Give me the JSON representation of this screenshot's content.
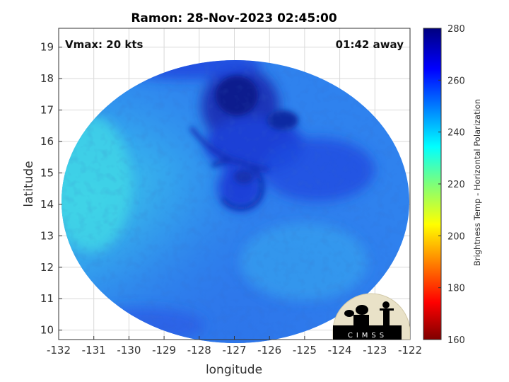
{
  "title": "Ramon: 28-Nov-2023 02:45:00",
  "vmax_label": "Vmax: 20 kts",
  "away_label": "01:42 away",
  "logo_text": "CIMSS",
  "colors": {
    "deep": "#0a1f8a",
    "core": "#1a3fd8",
    "mid": "#2b73ee",
    "light": "#3aa6ef",
    "cyan": "#3fd0e8",
    "axis": "#333333"
  },
  "chart_data": {
    "type": "heatmap",
    "title": "Ramon: 28-Nov-2023 02:45:00",
    "xlabel": "longitude",
    "ylabel": "latitude",
    "xlim": [
      -132,
      -122
    ],
    "ylim": [
      9.7,
      19.6
    ],
    "xticks": [
      -132,
      -131,
      -130,
      -129,
      -128,
      -127,
      -126,
      -125,
      -124,
      -123,
      -122
    ],
    "yticks": [
      10,
      11,
      12,
      13,
      14,
      15,
      16,
      17,
      18,
      19
    ],
    "grid": true,
    "colorbar": {
      "label": "Brightness Temp - Horizontal Polarization",
      "range": [
        160,
        280
      ],
      "ticks": [
        160,
        180,
        200,
        220,
        240,
        260,
        280
      ],
      "colormap": "jet"
    }
  }
}
